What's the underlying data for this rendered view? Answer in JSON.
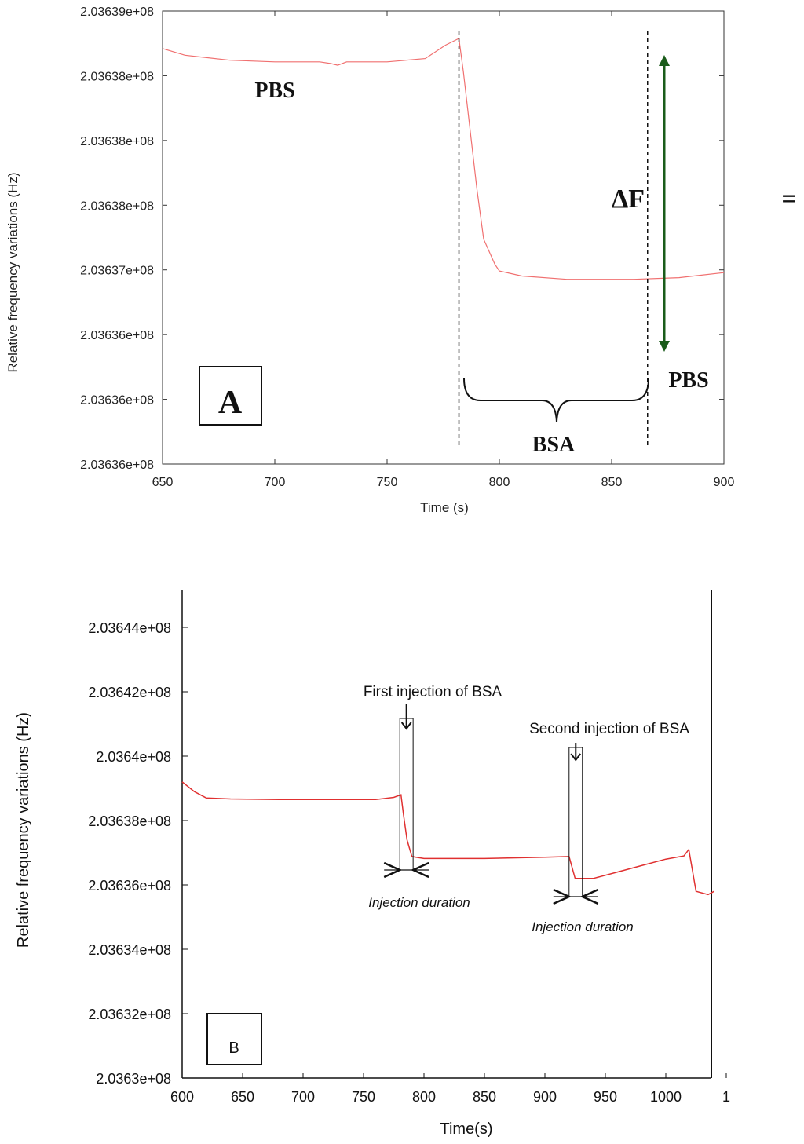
{
  "chart_data": [
    {
      "type": "line",
      "panel_label": "A",
      "xlabel": "Time (s)",
      "ylabel": "Relative frequency variations (Hz)",
      "xlim": [
        650,
        900
      ],
      "x_ticks": [
        "650",
        "700",
        "750",
        "800",
        "850",
        "900"
      ],
      "y_ticks": [
        "2.03636e+08",
        "2.03636e+08",
        "2.03636e+08",
        "2.03637e+08",
        "2.03638e+08",
        "2.03638e+08",
        "2.03638e+08",
        "2.03639e+08"
      ],
      "series_color": "#f07070",
      "series": [
        {
          "x": [
            650,
            660,
            680,
            700,
            720,
            725,
            728,
            732,
            750,
            767,
            776,
            782,
            784,
            790,
            793,
            798,
            800,
            810,
            830,
            860,
            880,
            900
          ],
          "y": [
            0.94,
            0.9,
            0.87,
            0.86,
            0.86,
            0.85,
            0.84,
            0.86,
            0.86,
            0.88,
            0.96,
            1.0,
            0.8,
            0.1,
            -0.2,
            -0.35,
            -0.39,
            -0.42,
            -0.44,
            -0.44,
            -0.43,
            -0.4
          ]
        }
      ],
      "y_units_note": "",
      "annotations": {
        "pbs_top": "PBS",
        "pbs_right": "PBS",
        "bsa": "BSA",
        "delta_f": "ΔF",
        "equals": "="
      },
      "markers_x": [
        782,
        866
      ],
      "delta_color": "#1a5c1a"
    },
    {
      "type": "line",
      "panel_label": "B",
      "xlabel": "Time(s)",
      "ylabel": "Relative frequency variations (Hz)",
      "xlim": [
        600,
        1040
      ],
      "ylim": [
        203630000.0,
        203645000.0
      ],
      "x_ticks": [
        "600",
        "650",
        "700",
        "750",
        "800",
        "850",
        "900",
        "950",
        "1000",
        "1"
      ],
      "y_ticks": [
        "2.0363e+08",
        "2.03632e+08",
        "2.03634e+08",
        "2.03636e+08",
        "2.03638e+08",
        "2.0364e+08",
        "2.03642e+08",
        "2.03644e+08"
      ],
      "series_color": "#e03030",
      "series": [
        {
          "x": [
            600,
            610,
            620,
            640,
            680,
            720,
            760,
            775,
            781,
            783,
            786,
            790,
            800,
            850,
            900,
            920,
            925,
            928,
            940,
            960,
            980,
            1000,
            1015,
            1019,
            1025,
            1035,
            1040
          ],
          "y": [
            203639200.0,
            203638900.0,
            203638700.0,
            203638670.0,
            203638650.0,
            203638650.0,
            203638650.0,
            203638720.0,
            203638800.0,
            203638200.0,
            203637400.0,
            203636880.0,
            203636820.0,
            203636820.0,
            203636860.0,
            203636880.0,
            203636200.0,
            203636200.0,
            203636200.0,
            203636400.0,
            203636600.0,
            203636800.0,
            203636900.0,
            203637100.0,
            203635800.0,
            203635700.0,
            203635800.0
          ]
        }
      ],
      "annotations": {
        "first_injection": "First injection  of BSA",
        "second_injection": "Second injection  of BSA",
        "injection_duration_1": "Injection duration",
        "injection_duration_2": "Injection duration"
      },
      "injections": [
        {
          "start": 780,
          "end": 791
        },
        {
          "start": 920,
          "end": 931
        }
      ]
    }
  ]
}
